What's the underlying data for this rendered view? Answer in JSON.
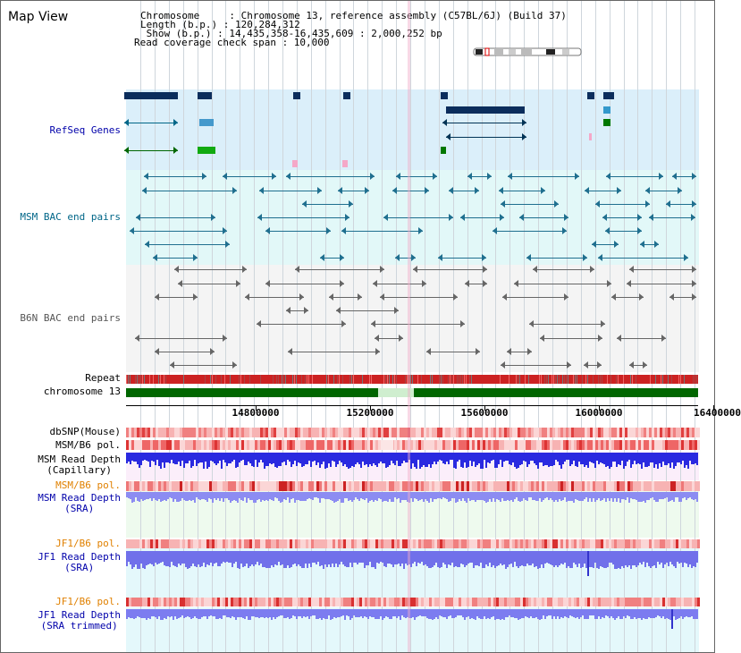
{
  "page": {
    "title": "Map View"
  },
  "header": {
    "chromosome_line": "Chromosome     : Chromosome 13, reference assembly (C57BL/6J) (Build 37)",
    "length_line": "Length (b.p.) : 120,284,312",
    "show_line": " Show (b.p.) : 14,435,358-16,435,609 : 2,000,252 bp",
    "read_coverage_line": "Read coverage check span : 10,000"
  },
  "tracks": {
    "refseq": {
      "label": "RefSeq Genes",
      "color": "#0000aa"
    },
    "msm_bac": {
      "label": "MSM BAC end pairs",
      "color": "#006688"
    },
    "b6n_bac": {
      "label": "B6N BAC end pairs",
      "color": "#555555"
    },
    "repeat": {
      "label": "Repeat"
    },
    "chromosome": {
      "label": "chromosome 13",
      "color": "#006600"
    },
    "dbsnp": {
      "label": "dbSNP(Mouse)"
    },
    "msm_b6_pol_1": {
      "label": "MSM/B6 pol."
    },
    "msm_read_depth_cap": {
      "label_line1": "MSM Read Depth",
      "label_line2": "(Capillary)"
    },
    "msm_b6_pol_2": {
      "label": "MSM/B6 pol.",
      "color": "#e08000"
    },
    "msm_read_depth_sra": {
      "label_line1": "MSM Read Depth",
      "label_line2": "(SRA)",
      "color": "#0000aa"
    },
    "jf1_b6_pol_1": {
      "label": "JF1/B6 pol.",
      "color": "#e08000"
    },
    "jf1_read_depth_sra": {
      "label_line1": "JF1 Read Depth",
      "label_line2": "(SRA)",
      "color": "#0000aa"
    },
    "jf1_b6_pol_2": {
      "label": "JF1/B6 pol.",
      "color": "#e08000"
    },
    "jf1_read_depth_trim": {
      "label_line1": "JF1 Read Depth",
      "label_line2": "(SRA trimmed)",
      "color": "#0000aa"
    }
  },
  "axis": {
    "ticks": [
      "14800000",
      "15200000",
      "15600000",
      "16000000",
      "16400000"
    ]
  }
}
